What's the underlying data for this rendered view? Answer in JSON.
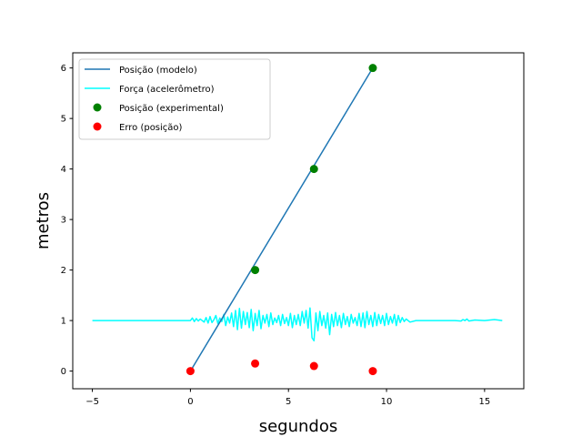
{
  "chart_data": {
    "type": "line",
    "title": "",
    "xlabel": "segundos",
    "ylabel": "metros",
    "xlim": [
      -6,
      17
    ],
    "ylim": [
      -0.35,
      6.3
    ],
    "xticks": [
      -5,
      0,
      5,
      10,
      15
    ],
    "yticks": [
      0,
      1,
      2,
      3,
      4,
      5,
      6
    ],
    "grid": false,
    "legend_position": "top-left",
    "series": [
      {
        "name": "Posição (modelo)",
        "kind": "line",
        "color": "#1f77b4",
        "x": [
          0,
          9.3
        ],
        "y": [
          0,
          6
        ]
      },
      {
        "name": "Força (acelerômetro)",
        "kind": "line",
        "color": "#00ffff",
        "x": [
          -5,
          0.0,
          0.1,
          0.2,
          0.3,
          0.4,
          0.5,
          0.6,
          0.7,
          0.8,
          0.9,
          1.0,
          1.1,
          1.2,
          1.3,
          1.4,
          1.5,
          1.6,
          1.7,
          1.8,
          1.9,
          2.0,
          2.1,
          2.2,
          2.3,
          2.4,
          2.5,
          2.6,
          2.7,
          2.8,
          2.9,
          3.0,
          3.1,
          3.2,
          3.3,
          3.4,
          3.5,
          3.6,
          3.7,
          3.8,
          3.9,
          4.0,
          4.1,
          4.2,
          4.3,
          4.4,
          4.5,
          4.6,
          4.7,
          4.8,
          4.9,
          5.0,
          5.1,
          5.2,
          5.3,
          5.4,
          5.5,
          5.6,
          5.7,
          5.8,
          5.9,
          6.0,
          6.1,
          6.2,
          6.3,
          6.4,
          6.5,
          6.6,
          6.7,
          6.8,
          6.9,
          7.0,
          7.1,
          7.2,
          7.3,
          7.4,
          7.5,
          7.6,
          7.7,
          7.8,
          7.9,
          8.0,
          8.1,
          8.2,
          8.3,
          8.4,
          8.5,
          8.6,
          8.7,
          8.8,
          8.9,
          9.0,
          9.1,
          9.2,
          9.3,
          9.4,
          9.5,
          9.6,
          9.7,
          9.8,
          9.9,
          10.0,
          10.1,
          10.2,
          10.3,
          10.4,
          10.5,
          10.6,
          10.7,
          10.8,
          10.9,
          11.0,
          11.2,
          11.5,
          11.8,
          12.5,
          13.5,
          13.8,
          13.9,
          14.0,
          14.1,
          14.2,
          14.5,
          15.0,
          15.5,
          15.9
        ],
        "y": [
          1.0,
          1.0,
          1.05,
          0.98,
          1.04,
          0.99,
          1.03,
          1.0,
          0.97,
          1.06,
          0.95,
          1.08,
          0.96,
          1.02,
          1.1,
          0.94,
          1.05,
          0.98,
          1.12,
          0.9,
          1.07,
          0.95,
          1.15,
          0.88,
          1.2,
          0.82,
          1.24,
          0.85,
          1.18,
          0.92,
          1.16,
          0.86,
          1.22,
          0.8,
          1.14,
          0.9,
          1.2,
          0.84,
          1.1,
          0.95,
          1.12,
          0.88,
          1.15,
          0.92,
          1.05,
          0.96,
          1.1,
          0.9,
          1.12,
          0.94,
          1.06,
          0.9,
          1.14,
          0.86,
          1.1,
          0.92,
          1.12,
          0.9,
          1.18,
          0.95,
          1.2,
          0.85,
          1.25,
          0.66,
          0.6,
          1.15,
          0.8,
          1.18,
          0.9,
          1.1,
          0.85,
          1.15,
          0.72,
          1.12,
          0.88,
          1.16,
          0.9,
          1.1,
          0.86,
          1.14,
          0.92,
          1.08,
          0.88,
          1.12,
          0.95,
          1.06,
          0.9,
          1.14,
          0.88,
          1.15,
          0.86,
          1.18,
          0.92,
          1.1,
          0.88,
          1.16,
          0.9,
          1.12,
          0.94,
          1.1,
          0.9,
          1.14,
          0.92,
          1.08,
          0.95,
          1.12,
          0.9,
          1.1,
          0.96,
          1.06,
          0.98,
          1.03,
          0.97,
          1.0,
          1.0,
          1.0,
          1.0,
          0.99,
          1.02,
          1.0,
          1.03,
          0.99,
          1.01,
          1.0,
          1.02,
          1.0
        ]
      },
      {
        "name": "Posição (experimental)",
        "kind": "scatter",
        "color": "#008000",
        "x": [
          3.3,
          6.3,
          9.3
        ],
        "y": [
          2,
          4,
          6
        ]
      },
      {
        "name": "Erro (posição)",
        "kind": "scatter",
        "color": "#ff0000",
        "x": [
          0,
          3.3,
          6.3,
          9.3
        ],
        "y": [
          0,
          0.15,
          0.1,
          0
        ]
      }
    ]
  }
}
